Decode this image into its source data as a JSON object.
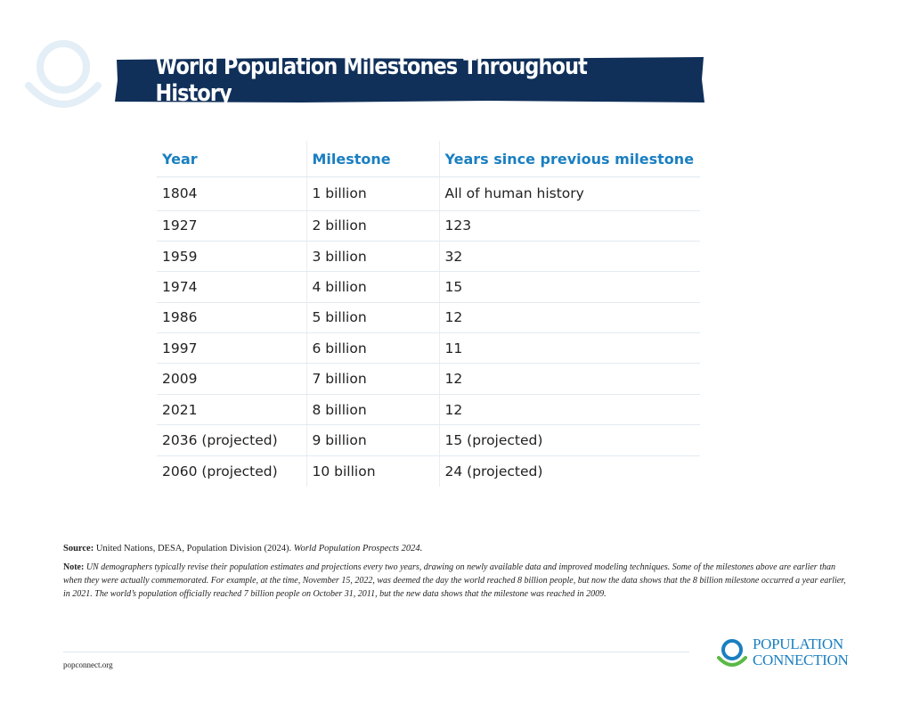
{
  "banner": {
    "title": "World Population Milestones Throughout History"
  },
  "table": {
    "headers": [
      "Year",
      "Milestone",
      "Years since previous milestone"
    ],
    "rows": [
      [
        "1804",
        "1 billion",
        "All of human history"
      ],
      [
        "1927",
        "2 billion",
        "123"
      ],
      [
        "1959",
        "3 billion",
        "32"
      ],
      [
        "1974",
        "4 billion",
        "15"
      ],
      [
        "1986",
        "5 billion",
        "12"
      ],
      [
        "1997",
        "6 billion",
        "11"
      ],
      [
        "2009",
        "7 billion",
        "12"
      ],
      [
        "2021",
        "8 billion",
        "12"
      ],
      [
        "2036 (projected)",
        "9 billion",
        "15 (projected)"
      ],
      [
        "2060 (projected)",
        "10 billion",
        "24 (projected)"
      ]
    ]
  },
  "source": {
    "label": "Source:",
    "text": "United Nations, DESA, Population Division (2024).",
    "title": "World Population Prospects 2024."
  },
  "note": {
    "label": "Note:",
    "text": "UN demographers typically revise their population estimates and projections every two years, drawing on newly available data and improved modeling techniques. Some of the milestones above are earlier than when they were actually commemorated. For example, at the time, November 15, 2022, was deemed the day the world reached 8 billion people, but now the data shows that the 8 billion milestone occurred a year earlier, in 2021. The world’s population officially reached 7 billion people on October 31, 2011, but the new data shows that the milestone was reached in 2009."
  },
  "footer": {
    "website": "popconnect.org",
    "brand_line1": "POPULATION",
    "brand_line2": "CONNECTION"
  },
  "colors": {
    "banner_bg": "#10305a",
    "header_text": "#1a7fc1",
    "brand_blue": "#1a7fc1",
    "brand_green": "#5bb947",
    "deco_light_blue": "#e3eef6"
  },
  "icons": {
    "deco": "population-connection-watermark-icon",
    "brand": "population-connection-logo-icon"
  }
}
